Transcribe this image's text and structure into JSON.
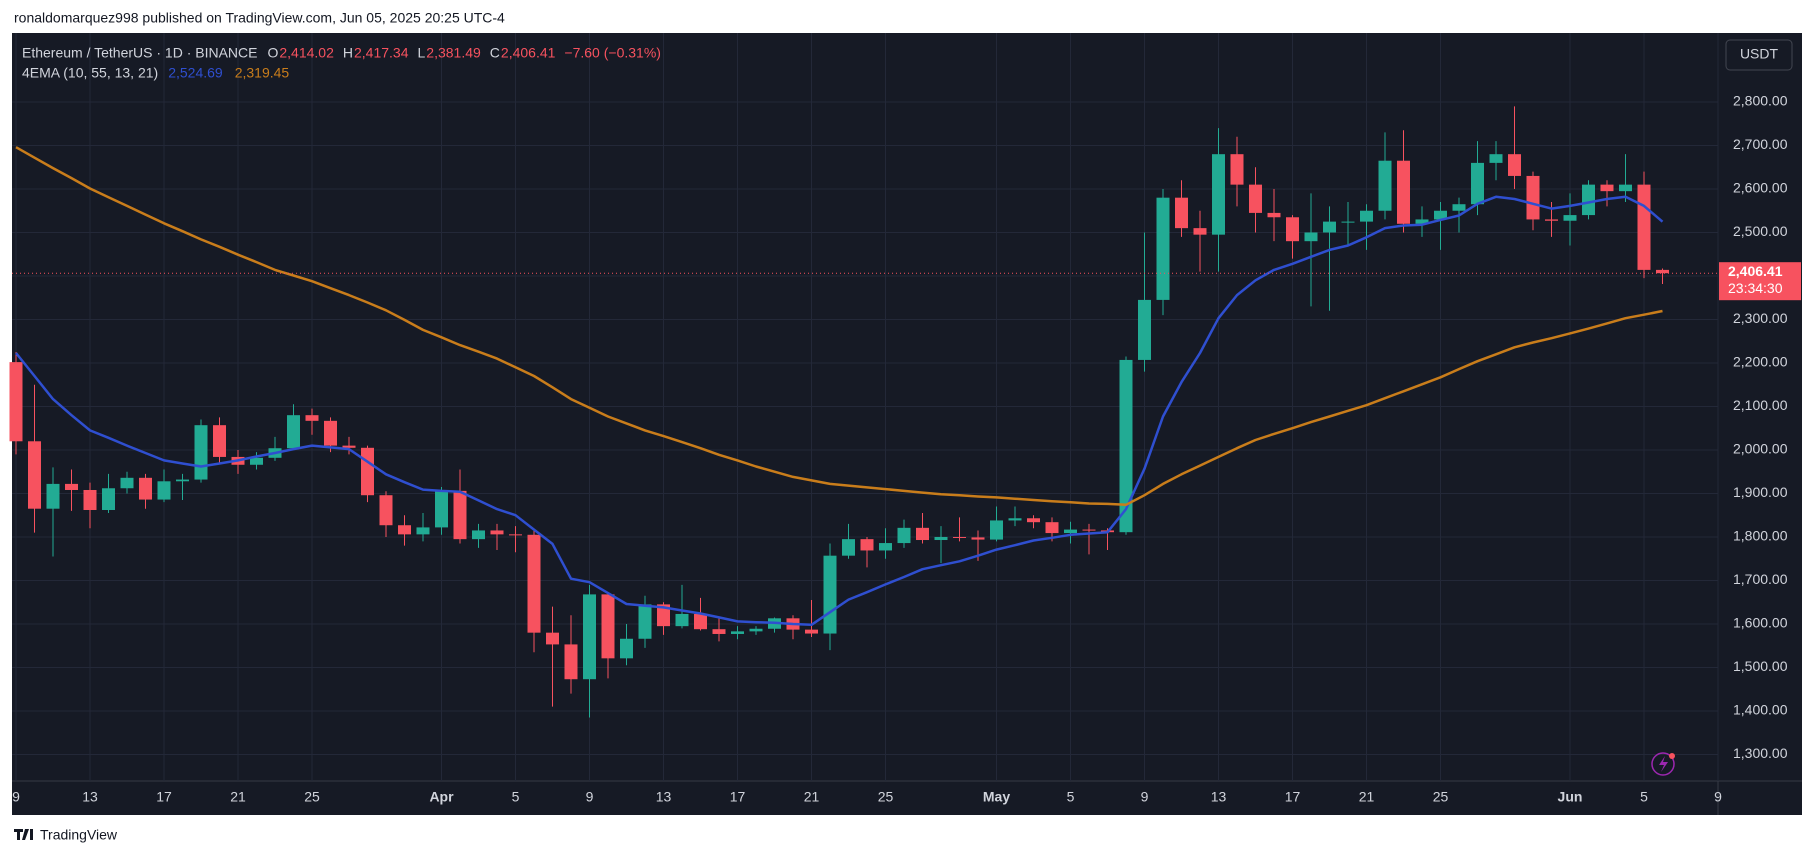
{
  "header_text": "ronaldomarquez998 published on TradingView.com, Jun 05, 2025 20:25 UTC-4",
  "footer": "TradingView",
  "chart_data": {
    "type": "candlestick",
    "symbol": "Ethereum / TetherUS · 1D · BINANCE",
    "ohlc_legend": [
      {
        "key": "O",
        "value": "2,414.02"
      },
      {
        "key": "H",
        "value": "2,417.34"
      },
      {
        "key": "L",
        "value": "2,381.49"
      },
      {
        "key": "C",
        "value": "2,406.41"
      }
    ],
    "change": "−7.60 (−0.31%)",
    "indicator": {
      "name": "4EMA (10, 55, 13, 21)",
      "values": [
        "2,524.69",
        "2,319.45"
      ]
    },
    "currency": "USDT",
    "last_price_label": "2,406.41",
    "countdown": "23:34:30",
    "up_color": "#22ab94",
    "down_color": "#f7525f",
    "categories": [
      "9",
      null,
      null,
      null,
      "13",
      null,
      null,
      null,
      "17",
      null,
      null,
      null,
      "21",
      null,
      null,
      null,
      "25",
      null,
      null,
      null,
      null,
      null,
      null,
      "Apr",
      null,
      null,
      null,
      "5",
      null,
      null,
      null,
      "9",
      null,
      null,
      null,
      "13",
      null,
      null,
      null,
      "17",
      null,
      null,
      null,
      "21",
      null,
      null,
      null,
      "25",
      null,
      null,
      null,
      null,
      null,
      "May",
      null,
      null,
      null,
      "5",
      null,
      null,
      null,
      "9",
      null,
      null,
      null,
      "13",
      null,
      null,
      null,
      "17",
      null,
      null,
      null,
      "21",
      null,
      null,
      null,
      "25",
      null,
      null,
      null,
      null,
      null,
      null,
      "Jun",
      null,
      null,
      null,
      "5",
      null,
      null,
      null,
      "9"
    ],
    "open": [
      2202,
      2020,
      1865,
      1922,
      1908,
      1862,
      1912,
      1936,
      1886,
      1928,
      1932,
      2057,
      1984,
      1966,
      1982,
      2004,
      2080,
      2067,
      2010,
      2005,
      1896,
      1827,
      1806,
      1822,
      1906,
      1795,
      1815,
      1806,
      1805,
      1580,
      1553,
      1473,
      1668,
      1521,
      1566,
      1645,
      1595,
      1623,
      1588,
      1577,
      1583,
      1589,
      1613,
      1587,
      1578,
      1757,
      1795,
      1769,
      1786,
      1821,
      1793,
      1800,
      1799,
      1794,
      1838,
      1843,
      1834,
      1809,
      1817,
      1815,
      1811,
      2207,
      2345,
      2580,
      2510,
      2495,
      2680,
      2610,
      2545,
      2535,
      2480,
      2500,
      2525,
      2525,
      2550,
      2665,
      2520,
      2530,
      2550,
      2565,
      2660,
      2680,
      2630,
      2530,
      2527,
      2540,
      2610,
      2595,
      2610,
      2414.02,
      null,
      null,
      null
    ],
    "high": [
      2225,
      2150,
      1960,
      1955,
      1925,
      1945,
      1950,
      1945,
      1955,
      1945,
      2070,
      2075,
      2000,
      1995,
      2030,
      2105,
      2095,
      2075,
      2030,
      2010,
      1905,
      1850,
      1855,
      1915,
      1955,
      1830,
      1830,
      1825,
      1815,
      1640,
      1620,
      1690,
      1670,
      1600,
      1665,
      1650,
      1690,
      1660,
      1615,
      1595,
      1595,
      1615,
      1620,
      1655,
      1785,
      1830,
      1800,
      1820,
      1840,
      1855,
      1825,
      1845,
      1815,
      1870,
      1870,
      1850,
      1845,
      1835,
      1830,
      1820,
      2215,
      2500,
      2600,
      2620,
      2550,
      2740,
      2720,
      2650,
      2600,
      2540,
      2590,
      2560,
      2570,
      2565,
      2730,
      2735,
      2560,
      2570,
      2580,
      2710,
      2710,
      2790,
      2640,
      2570,
      2590,
      2620,
      2620,
      2680,
      2640,
      2417.34,
      null,
      null,
      null
    ],
    "low": [
      1990,
      1810,
      1755,
      1860,
      1820,
      1855,
      1900,
      1865,
      1880,
      1885,
      1925,
      1970,
      1945,
      1955,
      1975,
      2000,
      2035,
      1995,
      1990,
      1880,
      1800,
      1780,
      1790,
      1805,
      1785,
      1775,
      1770,
      1765,
      1535,
      1410,
      1440,
      1385,
      1475,
      1505,
      1545,
      1575,
      1590,
      1585,
      1560,
      1565,
      1575,
      1580,
      1565,
      1570,
      1540,
      1750,
      1730,
      1750,
      1775,
      1785,
      1740,
      1790,
      1745,
      1790,
      1825,
      1820,
      1790,
      1785,
      1760,
      1770,
      1805,
      2180,
      2310,
      2490,
      2410,
      2410,
      2560,
      2500,
      2480,
      2440,
      2330,
      2320,
      2470,
      2460,
      2530,
      2500,
      2490,
      2460,
      2500,
      2540,
      2620,
      2600,
      2505,
      2490,
      2470,
      2530,
      2560,
      2570,
      2395,
      2381.49,
      null,
      null,
      null
    ],
    "close": [
      2020,
      1865,
      1922,
      1908,
      1862,
      1912,
      1936,
      1886,
      1928,
      1932,
      2057,
      1984,
      1966,
      1982,
      2004,
      2080,
      2067,
      2010,
      2005,
      1896,
      1827,
      1806,
      1822,
      1906,
      1795,
      1815,
      1806,
      1805,
      1580,
      1553,
      1473,
      1668,
      1521,
      1566,
      1645,
      1595,
      1623,
      1588,
      1577,
      1583,
      1589,
      1613,
      1587,
      1578,
      1757,
      1795,
      1769,
      1786,
      1821,
      1793,
      1800,
      1799,
      1794,
      1838,
      1843,
      1834,
      1809,
      1817,
      1815,
      1811,
      2207,
      2345,
      2580,
      2510,
      2495,
      2680,
      2610,
      2545,
      2535,
      2480,
      2500,
      2525,
      2525,
      2550,
      2665,
      2520,
      2530,
      2550,
      2565,
      2660,
      2680,
      2630,
      2530,
      2527,
      2540,
      2610,
      2595,
      2610,
      2414.02,
      2406.41,
      null,
      null,
      null
    ],
    "lines": [
      {
        "color": "#2f4fd0",
        "values": [
          2223,
          2170,
          2117,
          2080,
          2045,
          2028,
          2010,
          1993,
          1976,
          1969,
          1962,
          1969,
          1976,
          1985,
          1993,
          2002,
          2010,
          2006,
          2002,
          1973,
          1944,
          1926,
          1909,
          1906,
          1904,
          1884,
          1864,
          1850,
          1817,
          1784,
          1704,
          1696,
          1671,
          1646,
          1642,
          1638,
          1631,
          1624,
          1615,
          1606,
          1604,
          1603,
          1600,
          1598,
          1627,
          1656,
          1673,
          1691,
          1708,
          1726,
          1735,
          1744,
          1757,
          1771,
          1781,
          1792,
          1798,
          1805,
          1808,
          1811,
          1864,
          1957,
          2077,
          2156,
          2223,
          2303,
          2356,
          2390,
          2414,
          2428,
          2444,
          2460,
          2470,
          2489,
          2510,
          2516,
          2518,
          2529,
          2539,
          2566,
          2582,
          2577,
          2566,
          2555,
          2561,
          2569,
          2577,
          2582,
          2561,
          2524.69,
          null,
          null,
          null
        ]
      },
      {
        "color": "#c97d1b",
        "values": [
          2696,
          2672,
          2648,
          2625,
          2601,
          2581,
          2561,
          2541,
          2521,
          2503,
          2484,
          2467,
          2449,
          2432,
          2414,
          2401,
          2388,
          2372,
          2356,
          2339,
          2321,
          2299,
          2276,
          2259,
          2241,
          2226,
          2210,
          2190,
          2170,
          2144,
          2117,
          2097,
          2077,
          2061,
          2045,
          2032,
          2018,
          2004,
          1989,
          1976,
          1962,
          1950,
          1938,
          1930,
          1922,
          1918,
          1914,
          1910,
          1906,
          1902,
          1898,
          1896,
          1893,
          1891,
          1888,
          1885,
          1882,
          1880,
          1877,
          1876,
          1874,
          1896,
          1922,
          1944,
          1964,
          1984,
          2004,
          2023,
          2037,
          2050,
          2064,
          2077,
          2090,
          2103,
          2119,
          2135,
          2151,
          2167,
          2186,
          2204,
          2220,
          2236,
          2247,
          2257,
          2268,
          2279,
          2291,
          2303,
          2311,
          2319.45,
          null,
          null,
          null
        ]
      }
    ],
    "ylim": [
      1239,
      2954
    ],
    "yticks": [
      {
        "value": 1300,
        "label": "1,300.00"
      },
      {
        "value": 1400,
        "label": "1,400.00"
      },
      {
        "value": 1500,
        "label": "1,500.00"
      },
      {
        "value": 1600,
        "label": "1,600.00"
      },
      {
        "value": 1700,
        "label": "1,700.00"
      },
      {
        "value": 1800,
        "label": "1,800.00"
      },
      {
        "value": 1900,
        "label": "1,900.00"
      },
      {
        "value": 2000,
        "label": "2,000.00"
      },
      {
        "value": 2100,
        "label": "2,100.00"
      },
      {
        "value": 2200,
        "label": "2,200.00"
      },
      {
        "value": 2300,
        "label": "2,300.00"
      },
      {
        "value": 2400,
        "label": "2,400.00"
      },
      {
        "value": 2500,
        "label": "2,500.00"
      },
      {
        "value": 2600,
        "label": "2,600.00"
      },
      {
        "value": 2700,
        "label": "2,700.00"
      },
      {
        "value": 2800,
        "label": "2,800.00"
      }
    ],
    "grid": true
  }
}
